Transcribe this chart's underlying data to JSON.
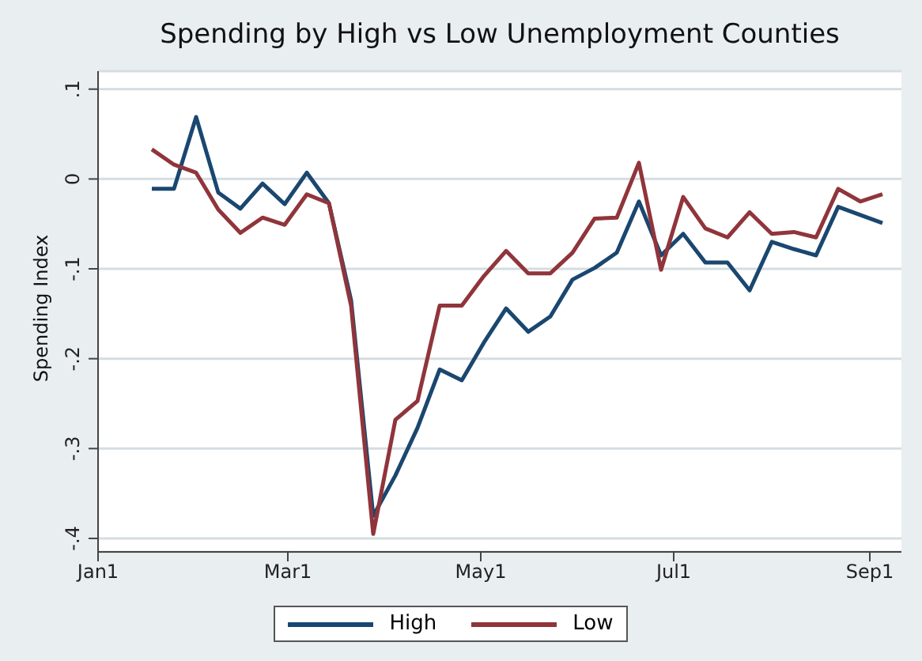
{
  "chart_data": {
    "type": "line",
    "title": "Spending by High vs Low Unemployment Counties",
    "ylabel": "Spending Index",
    "x": [
      "--01-18",
      "--01-25",
      "--02-01",
      "--02-08",
      "--02-15",
      "--02-22",
      "--02-29",
      "--03-07",
      "--03-14",
      "--03-21",
      "--03-28",
      "--04-04",
      "--04-11",
      "--04-18",
      "--04-25",
      "--05-02",
      "--05-09",
      "--05-16",
      "--05-23",
      "--05-30",
      "--06-06",
      "--06-13",
      "--06-20",
      "--06-27",
      "--07-04",
      "--07-11",
      "--07-18",
      "--07-25",
      "--08-01",
      "--08-08",
      "--08-15",
      "--08-22",
      "--08-29",
      "--09-05"
    ],
    "series": [
      {
        "name": "High",
        "color": "#1a476f",
        "values": [
          -0.011,
          -0.011,
          0.069,
          -0.015,
          -0.033,
          -0.005,
          -0.028,
          0.007,
          -0.027,
          -0.135,
          -0.375,
          -0.33,
          -0.277,
          -0.212,
          -0.224,
          -0.182,
          -0.144,
          -0.17,
          -0.153,
          -0.112,
          -0.099,
          -0.082,
          -0.025,
          -0.085,
          -0.061,
          -0.093,
          -0.093,
          -0.124,
          -0.07,
          -0.078,
          -0.085,
          -0.031,
          -0.04,
          -0.049
        ]
      },
      {
        "name": "Low",
        "color": "#90353b",
        "values": [
          0.033,
          0.016,
          0.007,
          -0.034,
          -0.06,
          -0.043,
          -0.051,
          -0.017,
          -0.027,
          -0.141,
          -0.395,
          -0.268,
          -0.247,
          -0.141,
          -0.141,
          -0.108,
          -0.08,
          -0.105,
          -0.105,
          -0.082,
          -0.044,
          -0.043,
          0.018,
          -0.101,
          -0.02,
          -0.055,
          -0.065,
          -0.037,
          -0.061,
          -0.059,
          -0.065,
          -0.011,
          -0.025,
          -0.017
        ]
      }
    ],
    "xlim": [
      "--01-01",
      "--09-11"
    ],
    "xticks": [
      {
        "value": "--01-01",
        "label": "Jan1"
      },
      {
        "value": "--03-01",
        "label": "Mar1"
      },
      {
        "value": "--05-01",
        "label": "May1"
      },
      {
        "value": "--07-01",
        "label": "Jul1"
      },
      {
        "value": "--09-01",
        "label": "Sep1"
      }
    ],
    "ylim": [
      -0.415,
      0.12
    ],
    "yticks": [
      {
        "value": -0.4,
        "label": "-.4"
      },
      {
        "value": -0.3,
        "label": "-.3"
      },
      {
        "value": -0.2,
        "label": "-.2"
      },
      {
        "value": -0.1,
        "label": "-.1"
      },
      0,
      {
        "value": 0.1,
        "label": ".1"
      }
    ],
    "grid": "y",
    "legend": "bottom",
    "marker": "none",
    "line_style": "solid"
  }
}
